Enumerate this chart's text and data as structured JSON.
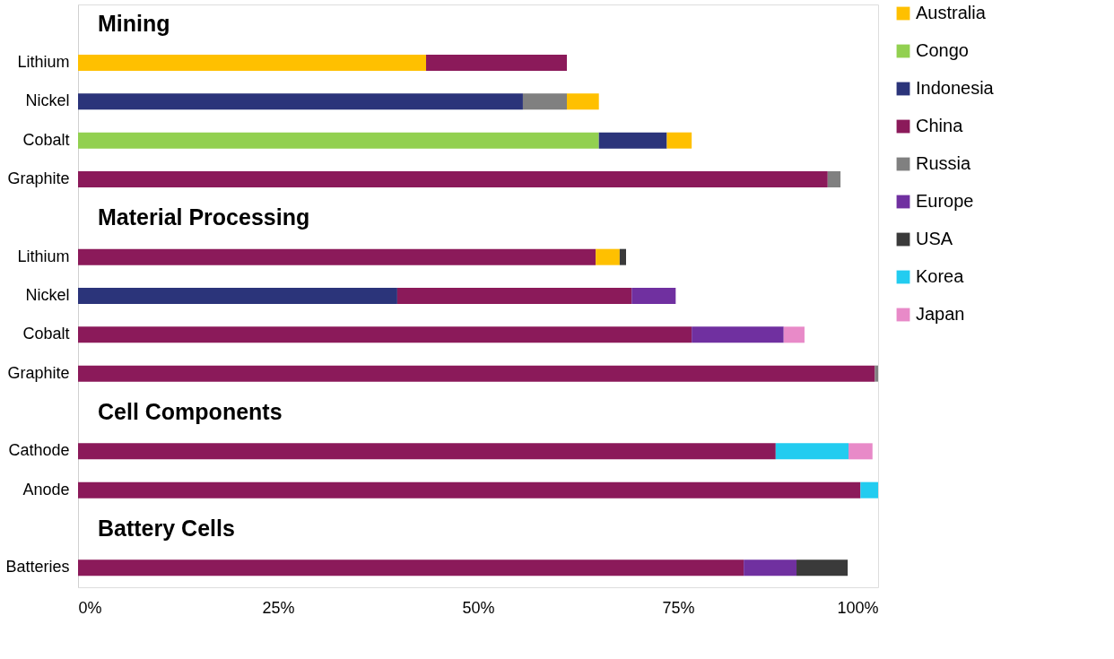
{
  "chart_data": {
    "type": "bar",
    "orientation": "horizontal",
    "stacked": true,
    "categories": [
      null,
      "Lithium",
      "Nickel",
      "Cobalt",
      "Graphite",
      null,
      "Lithium",
      "Nickel",
      "Cobalt",
      "Graphite",
      null,
      "Cathode",
      "Anode",
      null,
      "Batteries"
    ],
    "annotations": [
      "Mining",
      "Material Processing",
      "Cell Components",
      "Battery Cells"
    ],
    "series": [
      {
        "name": "Australia",
        "color": "#ffc000",
        "values": [
          null,
          43.5,
          null,
          null,
          null,
          null,
          null,
          null,
          null,
          null,
          null,
          null,
          null,
          null,
          null
        ]
      },
      {
        "name": "Congo",
        "color": "#92d050",
        "values": [
          null,
          null,
          null,
          65.1,
          null,
          null,
          null,
          null,
          null,
          null,
          null,
          null,
          null,
          null,
          null
        ]
      },
      {
        "name": "Indonesia",
        "color": "#2b347a",
        "values": [
          null,
          null,
          55.6,
          8.5,
          null,
          null,
          null,
          39.9,
          null,
          null,
          null,
          null,
          null,
          null,
          null
        ]
      },
      {
        "name": "China",
        "color": "#8b1a5a",
        "values": [
          null,
          17.6,
          null,
          null,
          93.7,
          null,
          64.7,
          29.3,
          76.7,
          99.6,
          null,
          87.2,
          97.8,
          null,
          83.2
        ]
      },
      {
        "name": "Russia",
        "color": "#808080",
        "values": [
          null,
          null,
          5.5,
          null,
          1.6,
          null,
          null,
          null,
          null,
          0.4,
          null,
          null,
          null,
          null,
          null
        ]
      },
      {
        "color": "#ffc000",
        "values": [
          null,
          null,
          4.0,
          3.1,
          null,
          null,
          3.0,
          null,
          null,
          null,
          null,
          null,
          null,
          null,
          null
        ]
      },
      {
        "name": "Europe",
        "color": "#7030a0",
        "values": [
          null,
          null,
          null,
          null,
          null,
          null,
          null,
          5.5,
          11.5,
          null,
          null,
          null,
          null,
          null,
          6.6
        ]
      },
      {
        "name": "USA",
        "color": "#3a3a3a",
        "values": [
          null,
          null,
          null,
          null,
          null,
          null,
          0.8,
          null,
          null,
          null,
          null,
          null,
          null,
          null,
          6.4
        ]
      },
      {
        "name": "Korea",
        "color": "#22ccf0",
        "values": [
          null,
          null,
          null,
          null,
          null,
          null,
          null,
          null,
          null,
          null,
          null,
          9.1,
          2.2,
          null,
          null
        ]
      },
      {
        "name": "Japan",
        "color": "#e88ac8",
        "values": [
          null,
          null,
          null,
          null,
          null,
          null,
          null,
          null,
          2.6,
          null,
          null,
          3.0,
          null,
          null,
          null
        ]
      }
    ],
    "xlim": [
      0,
      100
    ],
    "xticks": [
      {
        "value": 0,
        "label": "0%"
      },
      {
        "value": 25,
        "label": "25%"
      },
      {
        "value": 50,
        "label": "50%"
      },
      {
        "value": 75,
        "label": "75%"
      },
      {
        "value": 100,
        "label": "100%"
      }
    ],
    "grid": false,
    "legend": "right"
  }
}
